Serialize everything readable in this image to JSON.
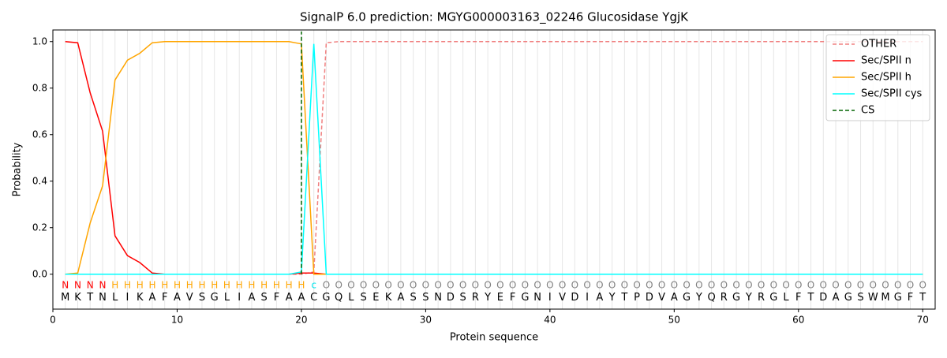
{
  "chart_data": {
    "type": "line",
    "title": "SignalP 6.0 prediction: MGYG000003163_02246 Glucosidase YgjK",
    "xlabel": "Protein sequence",
    "ylabel": "Probability",
    "xlim": [
      0,
      71
    ],
    "ylim": [
      -0.15,
      1.05
    ],
    "xticks": [
      0,
      10,
      20,
      30,
      40,
      50,
      60,
      70
    ],
    "yticks": [
      {
        "value": 0,
        "label": "0.0"
      },
      {
        "value": 0.2,
        "label": "0.2"
      },
      {
        "value": 0.4,
        "label": "0.4"
      },
      {
        "value": 0.6,
        "label": "0.6"
      },
      {
        "value": 0.8,
        "label": "0.8"
      },
      {
        "value": 1.0,
        "label": "1.0"
      }
    ],
    "legend": "upper right",
    "grid": true,
    "x": [
      1,
      2,
      3,
      4,
      5,
      6,
      7,
      8,
      9,
      10,
      11,
      12,
      13,
      14,
      15,
      16,
      17,
      18,
      19,
      20,
      21,
      22,
      23,
      24,
      25,
      26,
      27,
      28,
      29,
      30,
      31,
      32,
      33,
      34,
      35,
      36,
      37,
      38,
      39,
      40,
      41,
      42,
      43,
      44,
      45,
      46,
      47,
      48,
      49,
      50,
      51,
      52,
      53,
      54,
      55,
      56,
      57,
      58,
      59,
      60,
      61,
      62,
      63,
      64,
      65,
      66,
      67,
      68,
      69,
      70
    ],
    "sequence": [
      "M",
      "K",
      "T",
      "N",
      "L",
      "I",
      "K",
      "A",
      "F",
      "A",
      "V",
      "S",
      "G",
      "L",
      "I",
      "A",
      "S",
      "F",
      "A",
      "A",
      "C",
      "G",
      "Q",
      "L",
      "S",
      "E",
      "K",
      "A",
      "S",
      "S",
      "N",
      "D",
      "S",
      "R",
      "Y",
      "E",
      "F",
      "G",
      "N",
      "I",
      "V",
      "D",
      "I",
      "A",
      "Y",
      "T",
      "P",
      "D",
      "V",
      "A",
      "G",
      "Y",
      "Q",
      "R",
      "G",
      "Y",
      "R",
      "G",
      "L",
      "F",
      "T",
      "D",
      "A",
      "G",
      "S",
      "W",
      "M",
      "G",
      "F",
      "T"
    ],
    "region_labels": [
      "N",
      "N",
      "N",
      "N",
      "H",
      "H",
      "H",
      "H",
      "H",
      "H",
      "H",
      "H",
      "H",
      "H",
      "H",
      "H",
      "H",
      "H",
      "H",
      "H",
      "c",
      "O",
      "O",
      "O",
      "O",
      "O",
      "O",
      "O",
      "O",
      "O",
      "O",
      "O",
      "O",
      "O",
      "O",
      "O",
      "O",
      "O",
      "O",
      "O",
      "O",
      "O",
      "O",
      "O",
      "O",
      "O",
      "O",
      "O",
      "O",
      "O",
      "O",
      "O",
      "O",
      "O",
      "O",
      "O",
      "O",
      "O",
      "O",
      "O",
      "O",
      "O",
      "O",
      "O",
      "O",
      "O",
      "O",
      "O",
      "O",
      "O"
    ],
    "region_colors": {
      "N": "#ff0000",
      "H": "#ffa500",
      "c": "#00e5ee",
      "O": "#808080"
    },
    "series": [
      {
        "name": "OTHER",
        "color": "#f08080",
        "dash": true,
        "values": [
          0,
          0,
          0,
          0,
          0,
          0,
          0,
          0,
          0,
          0,
          0,
          0,
          0,
          0,
          0,
          0,
          0,
          0,
          0,
          0,
          0.01,
          0.995,
          1,
          1,
          1,
          1,
          1,
          1,
          1,
          1,
          1,
          1,
          1,
          1,
          1,
          1,
          1,
          1,
          1,
          1,
          1,
          1,
          1,
          1,
          1,
          1,
          1,
          1,
          1,
          1,
          1,
          1,
          1,
          1,
          1,
          1,
          1,
          1,
          1,
          1,
          1,
          1,
          1,
          1,
          1,
          1,
          1,
          1,
          1,
          1
        ]
      },
      {
        "name": "Sec/SPII n",
        "color": "#ff0000",
        "values": [
          1.0,
          0.995,
          0.78,
          0.615,
          0.165,
          0.08,
          0.05,
          0.005,
          0,
          0,
          0,
          0,
          0,
          0,
          0,
          0,
          0,
          0,
          0,
          0.005,
          0.005,
          0,
          0,
          0,
          0,
          0,
          0,
          0,
          0,
          0,
          0,
          0,
          0,
          0,
          0,
          0,
          0,
          0,
          0,
          0,
          0,
          0,
          0,
          0,
          0,
          0,
          0,
          0,
          0,
          0,
          0,
          0,
          0,
          0,
          0,
          0,
          0,
          0,
          0,
          0,
          0,
          0,
          0,
          0,
          0,
          0,
          0,
          0,
          0,
          0
        ]
      },
      {
        "name": "Sec/SPII h",
        "color": "#ffa500",
        "values": [
          0,
          0.005,
          0.22,
          0.38,
          0.835,
          0.92,
          0.95,
          0.995,
          1,
          1,
          1,
          1,
          1,
          1,
          1,
          1,
          1,
          1,
          1,
          0.99,
          0,
          0,
          0,
          0,
          0,
          0,
          0,
          0,
          0,
          0,
          0,
          0,
          0,
          0,
          0,
          0,
          0,
          0,
          0,
          0,
          0,
          0,
          0,
          0,
          0,
          0,
          0,
          0,
          0,
          0,
          0,
          0,
          0,
          0,
          0,
          0,
          0,
          0,
          0,
          0,
          0,
          0,
          0,
          0,
          0,
          0,
          0,
          0,
          0,
          0
        ]
      },
      {
        "name": "Sec/SPII cys",
        "color": "#00ffff",
        "values": [
          0,
          0,
          0,
          0,
          0,
          0,
          0,
          0,
          0,
          0,
          0,
          0,
          0,
          0,
          0,
          0,
          0,
          0,
          0,
          0.01,
          0.99,
          0,
          0,
          0,
          0,
          0,
          0,
          0,
          0,
          0,
          0,
          0,
          0,
          0,
          0,
          0,
          0,
          0,
          0,
          0,
          0,
          0,
          0,
          0,
          0,
          0,
          0,
          0,
          0,
          0,
          0,
          0,
          0,
          0,
          0,
          0,
          0,
          0,
          0,
          0,
          0,
          0,
          0,
          0,
          0,
          0,
          0,
          0,
          0,
          0
        ]
      }
    ],
    "cs": {
      "name": "CS",
      "color": "#006400",
      "x": 20
    }
  }
}
